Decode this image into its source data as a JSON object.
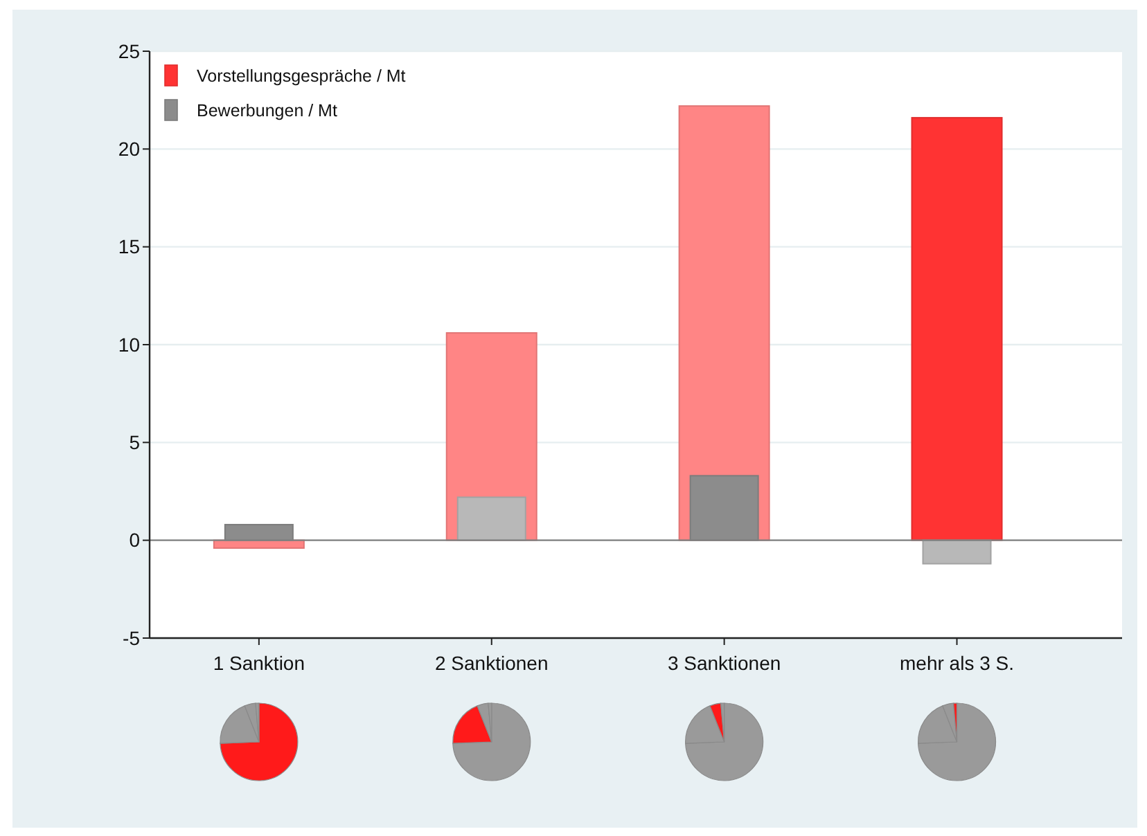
{
  "chart_data": [
    {
      "type": "bar",
      "categories": [
        "1 Sanktion",
        "2 Sanktionen",
        "3 Sanktionen",
        "mehr als 3 S."
      ],
      "series": [
        {
          "name": "Vorstellungsgespräche / Mt",
          "color": "#ff3333",
          "colors": [
            "#ff8585",
            "#ff8585",
            "#ff8585",
            "#ff3333"
          ],
          "values": [
            -0.4,
            10.6,
            22.2,
            21.6
          ]
        },
        {
          "name": "Bewerbungen / Mt",
          "color": "#8c8c8c",
          "colors": [
            "#8c8c8c",
            "#b8b8b8",
            "#8c8c8c",
            "#b8b8b8"
          ],
          "values": [
            0.8,
            2.2,
            3.3,
            -1.2
          ]
        }
      ],
      "ylim": [
        -5,
        25
      ],
      "yticks": [
        -5,
        0,
        5,
        10,
        15,
        20,
        25
      ],
      "grid": "y",
      "legend": "top left",
      "ref_lines": [
        {
          "axis": "y",
          "value": 0,
          "color": "#808080"
        }
      ]
    },
    {
      "type": "pie",
      "categories": [
        null,
        null,
        null,
        null
      ],
      "values": [
        74.4,
        19.6,
        4.6,
        1.4
      ],
      "colors": [
        "#ff1a1a",
        "#9a9a9a",
        "#9a9a9a",
        "#9a9a9a"
      ]
    },
    {
      "type": "pie",
      "categories": [
        null,
        null,
        null,
        null
      ],
      "values": [
        74.4,
        19.6,
        4.6,
        1.4
      ],
      "colors": [
        "#9a9a9a",
        "#ff1a1a",
        "#9a9a9a",
        "#9a9a9a"
      ]
    },
    {
      "type": "pie",
      "categories": [
        null,
        null,
        null,
        null
      ],
      "values": [
        74.4,
        19.6,
        4.6,
        1.4
      ],
      "colors": [
        "#9a9a9a",
        "#9a9a9a",
        "#ff1a1a",
        "#9a9a9a"
      ]
    },
    {
      "type": "pie",
      "categories": [
        null,
        null,
        null,
        null
      ],
      "values": [
        74.4,
        19.6,
        4.6,
        1.4
      ],
      "colors": [
        "#9a9a9a",
        "#9a9a9a",
        "#9a9a9a",
        "#ff1a1a"
      ]
    }
  ]
}
